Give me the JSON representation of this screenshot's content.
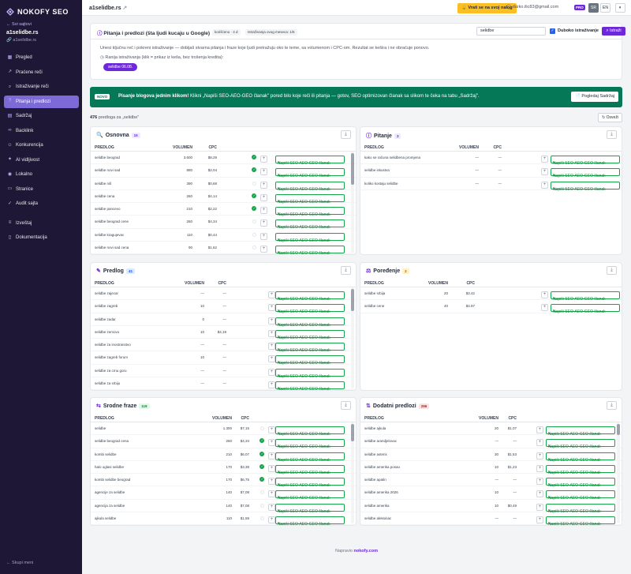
{
  "sidebar": {
    "brand": "NOKOFY SEO",
    "back": "Svi sajtovi",
    "project_name": "a1selidbe.rs",
    "project_url": "a1selidbe.rs",
    "items": [
      {
        "label": "Pregled",
        "icon": "grid-icon"
      },
      {
        "label": "Praćene reči",
        "icon": "chart-icon"
      },
      {
        "label": "Istraživanje reči",
        "icon": "search-icon"
      },
      {
        "label": "Pitanja i predlozi",
        "icon": "question-icon",
        "active": true
      },
      {
        "label": "Sadržaj",
        "icon": "document-icon"
      },
      {
        "label": "Backlink",
        "icon": "link-icon"
      },
      {
        "label": "Konkurencija",
        "icon": "users-icon"
      },
      {
        "label": "AI vidljivost",
        "icon": "sparkle-icon"
      },
      {
        "label": "Lokalno",
        "icon": "pin-icon"
      },
      {
        "label": "Stranice",
        "icon": "page-icon"
      },
      {
        "label": "Audit sajta",
        "icon": "check-icon"
      }
    ],
    "items2": [
      {
        "label": "Izveštaj",
        "icon": "report-icon"
      },
      {
        "label": "Dokumentacija",
        "icon": "book-icon"
      }
    ],
    "collapse": "Skupi meni"
  },
  "topbar": {
    "domain": "a1selidbe.rs",
    "back_btn": "Vrati se na svoj nalog",
    "email": "darko.ilic83@gmail.com",
    "plan": "PRO",
    "lang1": "SR",
    "lang2": "EN"
  },
  "query": {
    "title": "Pitanja i predlozi (šta ljudi kucaju u Google)",
    "chip1": "korišćeno · 4 d",
    "chip2": "Istraživanja ovog meseca: 1/5",
    "search_value": "selidbe",
    "deep_label": "Duboko istraživanje",
    "search_btn": "Istraži",
    "description": "Unesi ključnu reč i pokreni istraživanje — dobijaš stvarna pitanja i fraze koje ljudi pretražuju oko te teme, sa volumenom i CPC-om. Rezultat se kešira i ne obračuje ponovo.",
    "note": "Ranija istraživanja (klik = prikaz iz keša, bez trošenja kredita):",
    "history_btn": "selidbe 06.08."
  },
  "banner": {
    "tag": "NOVO",
    "bold": "Pisanje blogova jednim klikom!",
    "text": "Klikni „Napiši SEO-AEO-GEO članak\" pored bilo koje reči ili pitanja — gotov, SEO optimizovan članak sa slikom te čeka na tabu „Sadržaj\".",
    "button": "Pogledaj Sadržaj"
  },
  "summary": {
    "count": "476",
    "label": "predloga za „selidbe\"",
    "refresh": "Osveži"
  },
  "table_headers": {
    "keyword": "PREDLOG",
    "volume": "VOLUMEN",
    "cpc": "CPC"
  },
  "write_label": "Napiši SEO-AEO-GEO članak",
  "cards": {
    "osnovna": {
      "title": "Osnovna",
      "badge": "15",
      "rows": [
        {
          "kw": "selidbe beograd",
          "vol": "3.600",
          "cpc": "$8,29",
          "done": true
        },
        {
          "kw": "selidbe novi sad",
          "vol": "880",
          "cpc": "$2,04",
          "done": true
        },
        {
          "kw": "selidbe niš",
          "vol": "390",
          "cpc": "$0,68",
          "done": false
        },
        {
          "kw": "selidbe cena",
          "vol": "260",
          "cpc": "$4,14",
          "done": true
        },
        {
          "kw": "selidbe pancevo",
          "vol": "210",
          "cpc": "$2,22",
          "done": true
        },
        {
          "kw": "selidbe beograd cene",
          "vol": "260",
          "cpc": "$4,34",
          "done": false
        },
        {
          "kw": "selidbe kragujevac",
          "vol": "110",
          "cpc": "$0,44",
          "done": false
        },
        {
          "kw": "selidbe novi sad cena",
          "vol": "90",
          "cpc": "$1,62",
          "done": false
        }
      ]
    },
    "pitanje": {
      "title": "Pitanje",
      "badge": "3",
      "rows": [
        {
          "kw": "kako se računa selidbena promjena",
          "vol": "—",
          "cpc": "—"
        },
        {
          "kw": "selidbe iskustva",
          "vol": "—",
          "cpc": "—"
        },
        {
          "kw": "koliko kostaju selidbe",
          "vol": "—",
          "cpc": "—"
        }
      ]
    },
    "predlog": {
      "title": "Predlog",
      "badge": "41",
      "rows": [
        {
          "kw": "selidbe zajecar",
          "vol": "—",
          "cpc": "—"
        },
        {
          "kw": "selidbe zagreb",
          "vol": "10",
          "cpc": "—"
        },
        {
          "kw": "selidbe zadar",
          "vol": "0",
          "cpc": "—"
        },
        {
          "kw": "selidbe zemovo",
          "vol": "10",
          "cpc": "$4,19"
        },
        {
          "kw": "selidbe za inostranstvo",
          "vol": "—",
          "cpc": "—"
        },
        {
          "kw": "selidbe zagreb forum",
          "vol": "10",
          "cpc": "—"
        },
        {
          "kw": "selidbe za crnu goru",
          "vol": "—",
          "cpc": "—"
        },
        {
          "kw": "selidbe za srbiju",
          "vol": "—",
          "cpc": "—"
        }
      ]
    },
    "poredjenje": {
      "title": "Poređenje",
      "badge": "2",
      "rows": [
        {
          "kw": "selidbe srbija",
          "vol": "20",
          "cpc": "$3.42"
        },
        {
          "kw": "selidbe cene",
          "vol": "40",
          "cpc": "$4.97"
        }
      ]
    },
    "srodne": {
      "title": "Srodne fraze",
      "badge": "119",
      "rows": [
        {
          "kw": "selidbe",
          "vol": "1.300",
          "cpc": "$7,15",
          "done": false
        },
        {
          "kw": "selidbe beograd cena",
          "vol": "260",
          "cpc": "$4,34",
          "done": true
        },
        {
          "kw": "kombi selidbe",
          "vol": "210",
          "cpc": "$6,07",
          "done": true
        },
        {
          "kw": "halo oglasi selidbe",
          "vol": "170",
          "cpc": "$3,38",
          "done": true
        },
        {
          "kw": "kombi selidbe beograd",
          "vol": "170",
          "cpc": "$6,75",
          "done": true
        },
        {
          "kw": "agencije za selidbe",
          "vol": "140",
          "cpc": "$7,08",
          "done": false
        },
        {
          "kw": "agencija za selidbe",
          "vol": "140",
          "cpc": "$7,08",
          "done": false
        },
        {
          "kw": "ajkula selidbe",
          "vol": "110",
          "cpc": "$1,59",
          "done": false
        }
      ]
    },
    "dodatni": {
      "title": "Dodatni predlozi",
      "badge": "296",
      "rows": [
        {
          "kw": "selidbe ajkula",
          "vol": "20",
          "cpc": "$1,07"
        },
        {
          "kw": "selidbe arandjelovac",
          "vol": "—",
          "cpc": "—"
        },
        {
          "kw": "selidbe asterix",
          "vol": "30",
          "cpc": "$1,53"
        },
        {
          "kw": "selidbe amerika posao",
          "vol": "10",
          "cpc": "$1,23"
        },
        {
          "kw": "selidbe apatin",
          "vol": "—",
          "cpc": "—"
        },
        {
          "kw": "selidbe amerika 2026",
          "vol": "10",
          "cpc": "—"
        },
        {
          "kw": "selidbe amerika",
          "vol": "10",
          "cpc": "$0,49"
        },
        {
          "kw": "selidbe aleksinac",
          "vol": "—",
          "cpc": "—"
        }
      ]
    }
  },
  "footer": {
    "prefix": "Napravio",
    "link": "nokofy.com"
  },
  "colors": {
    "accent": "#6d28d9",
    "sidebar": "#1e1836",
    "banner": "#047857",
    "success": "#16a34a"
  }
}
